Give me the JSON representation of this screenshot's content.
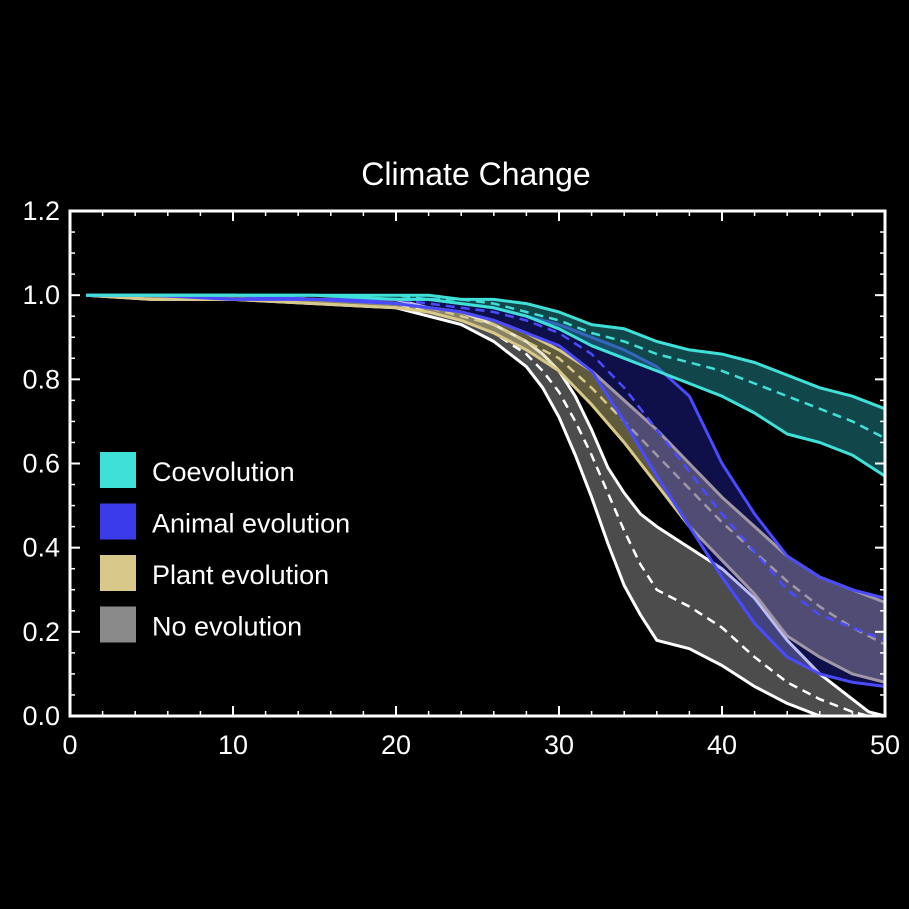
{
  "chart_data": {
    "type": "line",
    "title": "Climate Change",
    "xlabel": "",
    "ylabel": "",
    "xlim": [
      0,
      50
    ],
    "ylim": [
      0,
      1.2
    ],
    "x_ticks": [
      0,
      10,
      20,
      30,
      40,
      50
    ],
    "y_ticks": [
      0.0,
      0.2,
      0.4,
      0.6,
      0.8,
      1.0,
      1.2
    ],
    "y_tick_labels": [
      "0.0",
      "0.2",
      "0.4",
      "0.6",
      "0.8",
      "1.0",
      "1.2"
    ],
    "grid": false,
    "background": "#000000",
    "axis_color": "#ffffff",
    "legend_position": "left-middle",
    "series": [
      {
        "name": "No evolution",
        "color": "#ffffff",
        "fill": "#7a7a7a",
        "fill_opacity": 0.62,
        "x": [
          1,
          5,
          10,
          15,
          20,
          22,
          24,
          26,
          28,
          29,
          30,
          31,
          32,
          33,
          34,
          35,
          36,
          38,
          40,
          42,
          44,
          46,
          48,
          49,
          50
        ],
        "mean": [
          1.0,
          1.0,
          0.99,
          0.99,
          0.98,
          0.96,
          0.94,
          0.91,
          0.86,
          0.82,
          0.77,
          0.7,
          0.62,
          0.53,
          0.44,
          0.36,
          0.3,
          0.26,
          0.21,
          0.14,
          0.08,
          0.04,
          0.01,
          0.0,
          0.0
        ],
        "upper": [
          1.0,
          1.0,
          1.0,
          0.99,
          0.99,
          0.97,
          0.96,
          0.93,
          0.89,
          0.86,
          0.82,
          0.76,
          0.68,
          0.59,
          0.53,
          0.48,
          0.45,
          0.4,
          0.35,
          0.28,
          0.18,
          0.1,
          0.04,
          0.01,
          0.0
        ],
        "lower": [
          1.0,
          0.99,
          0.99,
          0.98,
          0.97,
          0.95,
          0.93,
          0.89,
          0.83,
          0.78,
          0.71,
          0.62,
          0.52,
          0.41,
          0.31,
          0.24,
          0.18,
          0.16,
          0.12,
          0.07,
          0.03,
          0.0,
          0.0,
          0.0,
          0.0
        ]
      },
      {
        "name": "Plant evolution",
        "color": "#d8c98a",
        "fill": "#d8c98a",
        "fill_opacity": 0.45,
        "x": [
          1,
          5,
          10,
          15,
          20,
          22,
          24,
          26,
          28,
          30,
          32,
          34,
          36,
          38,
          40,
          42,
          44,
          46,
          48,
          50
        ],
        "mean": [
          1.0,
          1.0,
          0.99,
          0.99,
          0.98,
          0.97,
          0.95,
          0.93,
          0.89,
          0.85,
          0.78,
          0.7,
          0.62,
          0.54,
          0.46,
          0.39,
          0.32,
          0.26,
          0.21,
          0.17
        ],
        "upper": [
          1.0,
          1.0,
          1.0,
          0.99,
          0.98,
          0.97,
          0.96,
          0.94,
          0.91,
          0.87,
          0.82,
          0.75,
          0.68,
          0.6,
          0.52,
          0.45,
          0.38,
          0.33,
          0.3,
          0.27
        ],
        "lower": [
          1.0,
          0.99,
          0.99,
          0.98,
          0.97,
          0.96,
          0.94,
          0.91,
          0.87,
          0.82,
          0.74,
          0.65,
          0.55,
          0.45,
          0.37,
          0.29,
          0.19,
          0.14,
          0.1,
          0.08
        ]
      },
      {
        "name": "Animal evolution",
        "color": "#4a4aff",
        "fill": "#2e2ee6",
        "fill_opacity": 0.32,
        "x": [
          1,
          5,
          10,
          15,
          20,
          22,
          24,
          26,
          28,
          30,
          32,
          34,
          36,
          38,
          40,
          42,
          44,
          46,
          48,
          50
        ],
        "mean": [
          1.0,
          1.0,
          0.99,
          0.99,
          0.99,
          0.98,
          0.97,
          0.96,
          0.94,
          0.91,
          0.86,
          0.78,
          0.68,
          0.58,
          0.48,
          0.39,
          0.3,
          0.24,
          0.21,
          0.18
        ],
        "upper": [
          1.0,
          1.0,
          1.0,
          0.99,
          0.99,
          0.99,
          0.98,
          0.97,
          0.95,
          0.93,
          0.9,
          0.87,
          0.83,
          0.76,
          0.6,
          0.48,
          0.38,
          0.33,
          0.3,
          0.28
        ],
        "lower": [
          1.0,
          1.0,
          0.99,
          0.99,
          0.98,
          0.97,
          0.96,
          0.94,
          0.91,
          0.88,
          0.82,
          0.7,
          0.57,
          0.45,
          0.33,
          0.22,
          0.14,
          0.1,
          0.08,
          0.07
        ]
      },
      {
        "name": "Coevolution",
        "color": "#3fe0d8",
        "fill": "#1f7f86",
        "fill_opacity": 0.55,
        "x": [
          1,
          5,
          10,
          15,
          20,
          22,
          24,
          26,
          28,
          30,
          32,
          34,
          36,
          38,
          40,
          42,
          44,
          46,
          48,
          50
        ],
        "mean": [
          1.0,
          1.0,
          1.0,
          1.0,
          1.0,
          0.99,
          0.99,
          0.98,
          0.96,
          0.94,
          0.91,
          0.89,
          0.86,
          0.84,
          0.82,
          0.79,
          0.76,
          0.73,
          0.7,
          0.66
        ],
        "upper": [
          1.0,
          1.0,
          1.0,
          1.0,
          1.0,
          1.0,
          0.99,
          0.99,
          0.98,
          0.96,
          0.93,
          0.92,
          0.89,
          0.87,
          0.86,
          0.84,
          0.81,
          0.78,
          0.76,
          0.73
        ],
        "lower": [
          1.0,
          1.0,
          1.0,
          1.0,
          0.99,
          0.99,
          0.98,
          0.97,
          0.95,
          0.92,
          0.88,
          0.85,
          0.82,
          0.79,
          0.76,
          0.72,
          0.67,
          0.65,
          0.62,
          0.57
        ]
      }
    ],
    "legend": [
      {
        "label": "Coevolution",
        "color": "#3fe0d8"
      },
      {
        "label": "Animal evolution",
        "color": "#3b3bea"
      },
      {
        "label": "Plant evolution",
        "color": "#d8c98a"
      },
      {
        "label": "No evolution",
        "color": "#8a8a8a"
      }
    ]
  }
}
